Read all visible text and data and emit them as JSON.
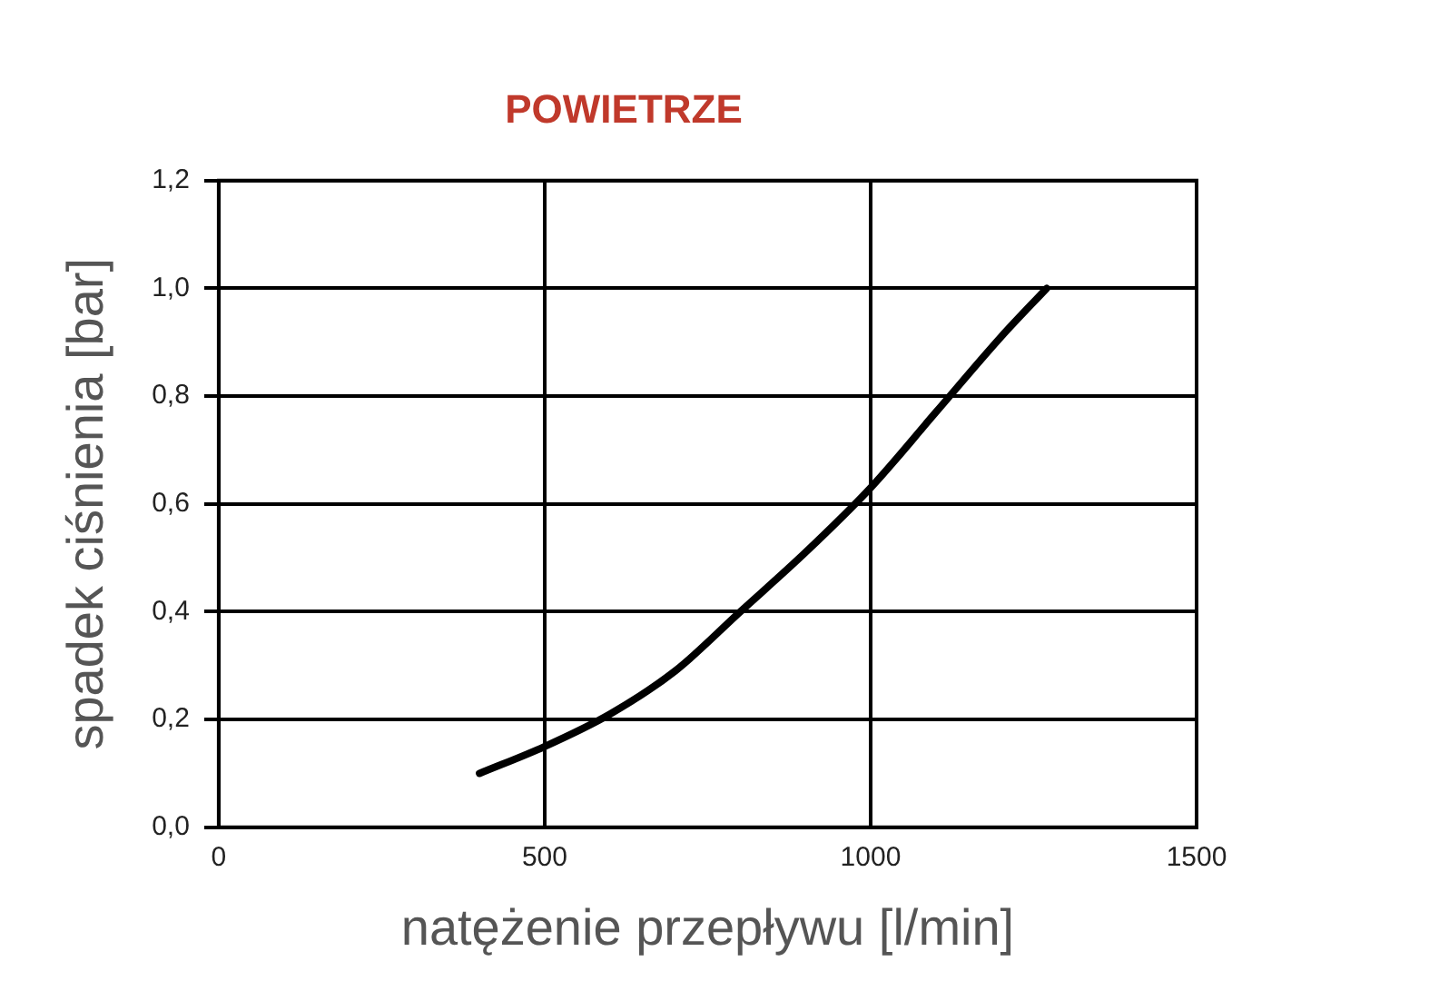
{
  "chart_data": {
    "type": "line",
    "title": "POWIETRZE",
    "xlabel": "natężenie przepływu [l/min]",
    "ylabel": "spadek ciśnienia [bar]",
    "x": [
      400,
      500,
      600,
      700,
      800,
      900,
      1000,
      1100,
      1200,
      1270
    ],
    "series": [
      {
        "color": "#000000",
        "values": [
          0.1,
          0.15,
          0.21,
          0.29,
          0.4,
          0.51,
          0.63,
          0.77,
          0.91,
          1.0
        ]
      }
    ],
    "xlim": [
      0,
      1500
    ],
    "xticks": [
      0,
      500,
      1000,
      1500
    ],
    "ylim": [
      0,
      1.2
    ],
    "yticks": [
      {
        "value": 0,
        "label": "0,0"
      },
      {
        "value": 0.2,
        "label": "0,2"
      },
      {
        "value": 0.4,
        "label": "0,4"
      },
      {
        "value": 0.6,
        "label": "0,6"
      },
      {
        "value": 0.8,
        "label": "0,8"
      },
      {
        "value": 1,
        "label": "1,0"
      },
      {
        "value": 1.2,
        "label": "1,2"
      }
    ],
    "grid": true,
    "legend": false,
    "marker": "none",
    "line_style": "solid"
  }
}
